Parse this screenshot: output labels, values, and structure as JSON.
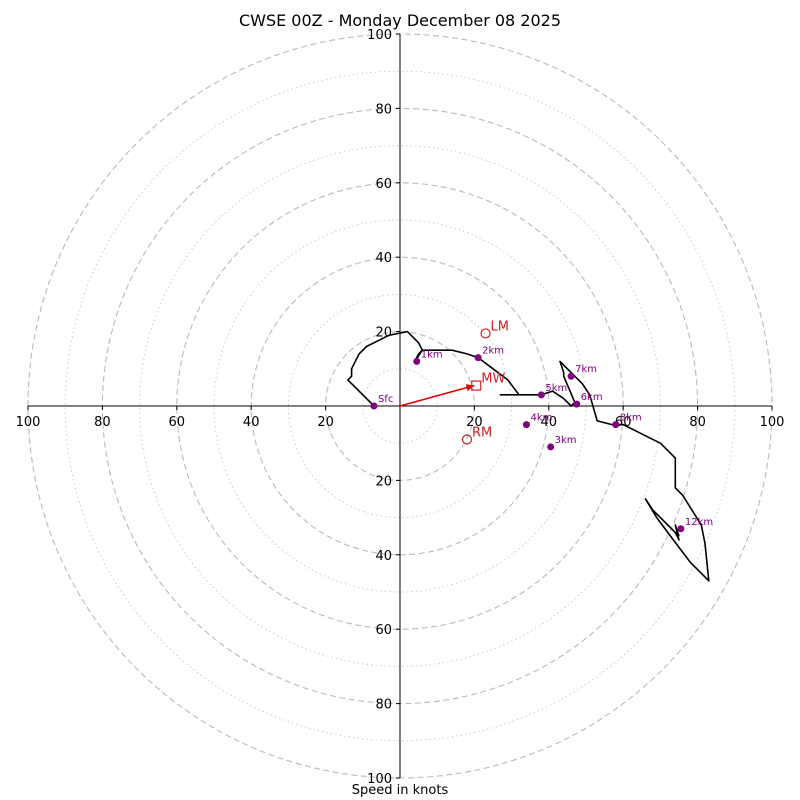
{
  "chart_data": {
    "type": "hodograph",
    "title": "CWSE 00Z - Monday December 08 2025",
    "xlabel": "Speed in knots",
    "rings_major": [
      20,
      40,
      60,
      80,
      100
    ],
    "rings_minor": [
      10,
      30,
      50,
      70,
      90
    ],
    "axis_range": [
      -100,
      100
    ],
    "tick_labels": {
      "x_left": [
        "100",
        "80",
        "60",
        "40",
        "20"
      ],
      "x_right": [
        "20",
        "40",
        "60",
        "80",
        "100"
      ],
      "y_top": [
        "100",
        "80",
        "60",
        "40",
        "20"
      ],
      "y_bottom": [
        "20",
        "40",
        "60",
        "80",
        "100"
      ]
    },
    "trace": [
      [
        -7,
        0
      ],
      [
        -12,
        5
      ],
      [
        -14,
        7
      ],
      [
        -13,
        8
      ],
      [
        -13,
        10
      ],
      [
        -11,
        14
      ],
      [
        -9,
        16
      ],
      [
        -3,
        19
      ],
      [
        2,
        20
      ],
      [
        5,
        17
      ],
      [
        6,
        15
      ],
      [
        5,
        14
      ],
      [
        4,
        12
      ],
      [
        6,
        15
      ],
      [
        14,
        15
      ],
      [
        18,
        14
      ],
      [
        21,
        13
      ],
      [
        25,
        10
      ],
      [
        29,
        7
      ],
      [
        32,
        3
      ],
      [
        27,
        3
      ],
      [
        33,
        3
      ],
      [
        38,
        3
      ],
      [
        41,
        4
      ],
      [
        44,
        2
      ],
      [
        46,
        0
      ],
      [
        47,
        1
      ],
      [
        44,
        8
      ],
      [
        44,
        9
      ],
      [
        43,
        12
      ],
      [
        49,
        6
      ],
      [
        51,
        3
      ],
      [
        53,
        -4
      ],
      [
        57,
        -5
      ],
      [
        58,
        -5
      ],
      [
        60,
        -5
      ],
      [
        62,
        -6
      ],
      [
        66,
        -8
      ],
      [
        70,
        -10
      ],
      [
        74,
        -14
      ],
      [
        74,
        -20
      ],
      [
        74,
        -22
      ],
      [
        76,
        -24
      ],
      [
        81,
        -32
      ],
      [
        82,
        -37
      ],
      [
        83,
        -47
      ],
      [
        78,
        -42
      ],
      [
        75,
        -38
      ],
      [
        72,
        -34
      ],
      [
        69,
        -30
      ],
      [
        66,
        -25
      ],
      [
        68,
        -28
      ],
      [
        72,
        -32
      ],
      [
        74,
        -34
      ],
      [
        75,
        -36
      ],
      [
        74,
        -32
      ],
      [
        75,
        -35
      ]
    ],
    "level_points": [
      {
        "label": "Sfc",
        "u": -7,
        "v": 0
      },
      {
        "label": "1km",
        "u": 4.5,
        "v": 12
      },
      {
        "label": "2km",
        "u": 21,
        "v": 13
      },
      {
        "label": "3km",
        "u": 40.5,
        "v": -11
      },
      {
        "label": "4km",
        "u": 34,
        "v": -5
      },
      {
        "label": "5km",
        "u": 38,
        "v": 3
      },
      {
        "label": "6km",
        "u": 47.5,
        "v": 0.5
      },
      {
        "label": "7km",
        "u": 46,
        "v": 8
      },
      {
        "label": "8km",
        "u": 58,
        "v": -5
      },
      {
        "label": "12km",
        "u": 75.5,
        "v": -33
      }
    ],
    "motions": [
      {
        "label": "LM",
        "u": 23,
        "v": 19.5,
        "marker": "circle"
      },
      {
        "label": "MW",
        "u": 20.5,
        "v": 5.5,
        "marker": "square"
      },
      {
        "label": "RM",
        "u": 18,
        "v": -9,
        "marker": "circle"
      }
    ],
    "storm_motion_arrow": {
      "from": [
        0,
        0
      ],
      "to": [
        20,
        5.5
      ]
    },
    "colors": {
      "trace": "#000000",
      "level_points": "#800080",
      "motion": "#cc2222",
      "arrow": "#e00000",
      "rings": "#bbbbbb"
    }
  }
}
